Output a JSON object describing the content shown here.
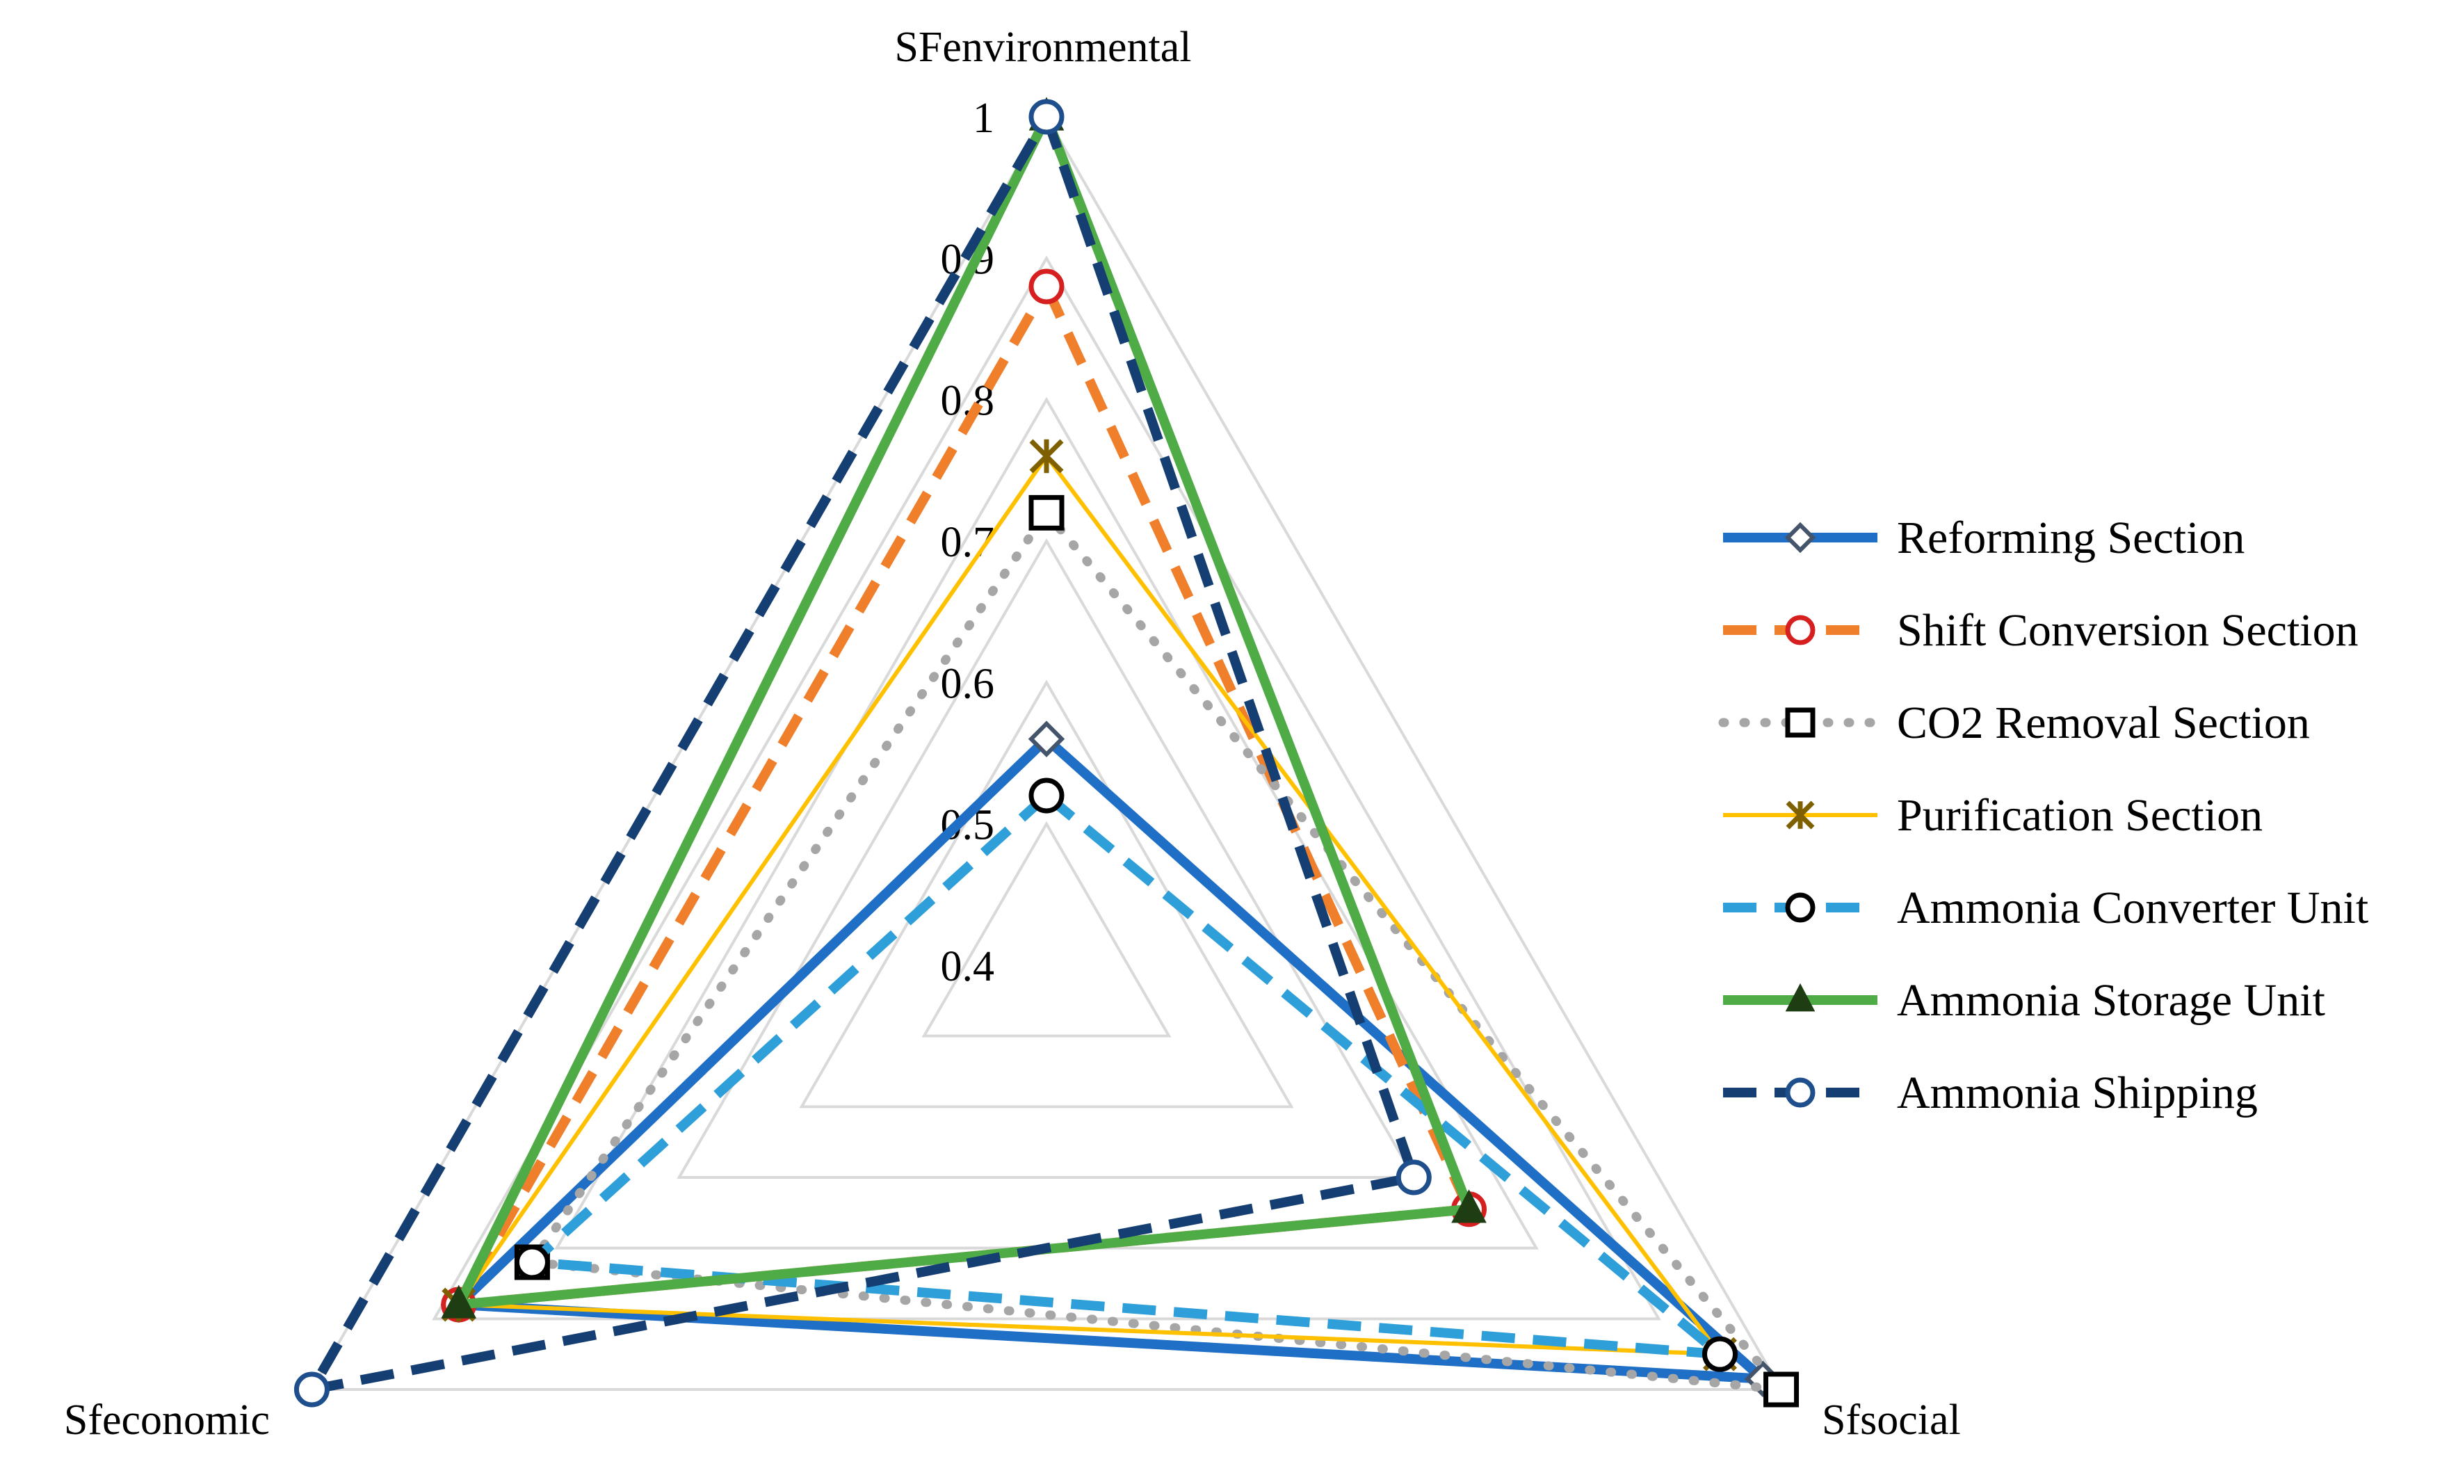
{
  "chart_data": {
    "type": "radar",
    "axes": [
      "SFenvironmental",
      "Sfsocial",
      "Sfeconomic"
    ],
    "rlim": [
      0.4,
      1
    ],
    "ticks": [
      "0.4",
      "0.5",
      "0.6",
      "0.7",
      "0.8",
      "0.9",
      "1"
    ],
    "grid": true,
    "legend_position": "right",
    "series": [
      {
        "name": "Reforming Section",
        "values": [
          0.56,
          0.985,
          0.88
        ],
        "color": "#1F6FC6",
        "dash": "solid",
        "marker": "diamond",
        "marker_color": "#44546A"
      },
      {
        "name": "Shift Conversion Section",
        "values": [
          0.88,
          0.745,
          0.88
        ],
        "color": "#F07F2C",
        "dash": "dash",
        "marker": "circle",
        "marker_color": "#D62020"
      },
      {
        "name": "CO2 Removal Section",
        "values": [
          0.72,
          1.0,
          0.82
        ],
        "color": "#A6A6A6",
        "dash": "dot",
        "marker": "square",
        "marker_color": "#000000"
      },
      {
        "name": "Purification Section",
        "values": [
          0.76,
          0.95,
          0.88
        ],
        "color": "#FFC000",
        "dash": "thin",
        "marker": "asterisk",
        "marker_color": "#7F6000"
      },
      {
        "name": "Ammonia Converter Unit",
        "values": [
          0.52,
          0.95,
          0.82
        ],
        "color": "#2E9FD8",
        "dash": "dash",
        "marker": "circle",
        "marker_color": "#000000"
      },
      {
        "name": "Ammonia Storage Unit",
        "values": [
          1.0,
          0.745,
          0.88
        ],
        "color": "#4EAB45",
        "dash": "solid",
        "marker": "triangle",
        "marker_color": "#1E3D12"
      },
      {
        "name": "Ammonia Shipping",
        "values": [
          1.0,
          0.7,
          1.0
        ],
        "color": "#153E72",
        "dash": "dash",
        "marker": "circle",
        "marker_color": "#1F4E8C"
      }
    ]
  }
}
